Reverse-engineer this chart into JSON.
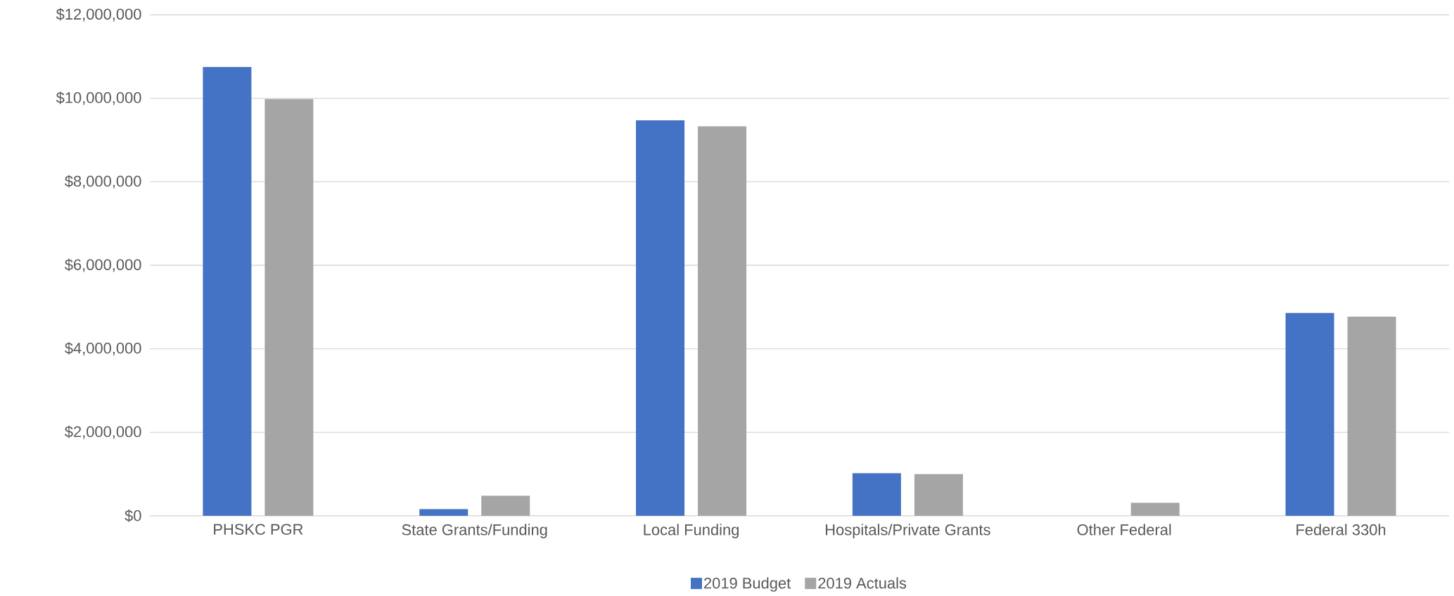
{
  "chart_data": {
    "type": "bar",
    "categories": [
      "PHSKC PGR",
      "State Grants/Funding",
      "Local Funding",
      "Hospitals/Private Grants",
      "Other Federal",
      "Federal 330h"
    ],
    "series": [
      {
        "name": "2019 Budget",
        "color": "#4472c4",
        "values": [
          10750000,
          160000,
          9470000,
          1020000,
          0,
          4860000
        ]
      },
      {
        "name": "2019 Actuals",
        "color": "#a5a5a5",
        "values": [
          9980000,
          480000,
          9330000,
          1000000,
          310000,
          4770000
        ]
      }
    ],
    "ylim": [
      0,
      12000000
    ],
    "yticks": [
      {
        "value": 0,
        "label": "$0"
      },
      {
        "value": 2000000,
        "label": "$2,000,000"
      },
      {
        "value": 4000000,
        "label": "$4,000,000"
      },
      {
        "value": 6000000,
        "label": "$6,000,000"
      },
      {
        "value": 8000000,
        "label": "$8,000,000"
      },
      {
        "value": 10000000,
        "label": "$10,000,000"
      },
      {
        "value": 12000000,
        "label": "$12,000,000"
      }
    ],
    "grid": "y",
    "legend": "bottom"
  }
}
